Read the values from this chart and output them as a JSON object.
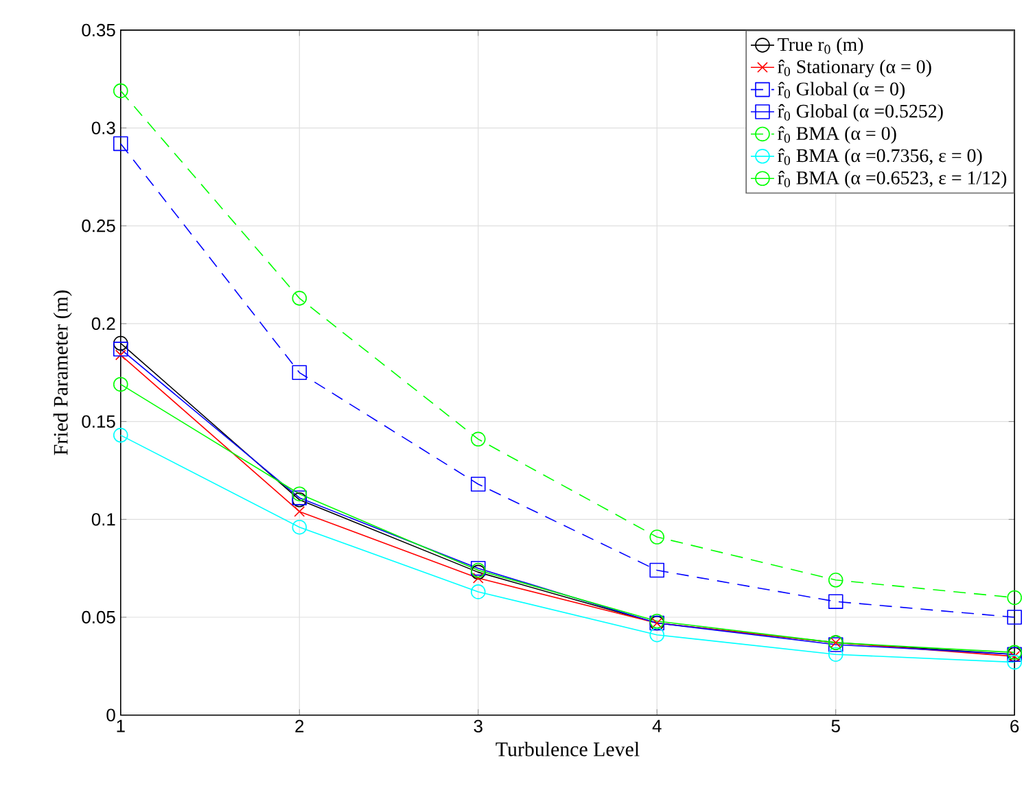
{
  "chart_data": {
    "type": "line",
    "xlabel": "Turbulence Level",
    "ylabel": "Fried Parameter (m)",
    "x": [
      1,
      2,
      3,
      4,
      5,
      6
    ],
    "series": [
      {
        "name": "True r$_{0}$ (m)",
        "color": "#000000",
        "marker": "circle",
        "line_style": "solid",
        "values": [
          0.19,
          0.11,
          0.073,
          0.047,
          0.037,
          0.031
        ]
      },
      {
        "name": "r̂$_{0}$ Stationary (α = 0)",
        "color": "#ff0000",
        "marker": "cross",
        "line_style": "solid",
        "values": [
          0.184,
          0.104,
          0.07,
          0.047,
          0.037,
          0.03
        ]
      },
      {
        "name": "r̂$_{0}$ Global (α = 0)",
        "color": "#0000ff",
        "marker": "square",
        "line_style": "dashed",
        "values": [
          0.292,
          0.175,
          0.118,
          0.074,
          0.058,
          0.05
        ]
      },
      {
        "name": "r̂$_{0}$ Global (α =0.5252)",
        "color": "#0000ff",
        "marker": "square",
        "line_style": "solid",
        "values": [
          0.187,
          0.111,
          0.075,
          0.047,
          0.036,
          0.031
        ]
      },
      {
        "name": "r̂$_{0}$ BMA (α = 0)",
        "color": "#00ff00",
        "marker": "circle",
        "line_style": "dashed",
        "values": [
          0.319,
          0.213,
          0.141,
          0.091,
          0.069,
          0.06
        ]
      },
      {
        "name": "r̂$_{0}$ BMA (α =0.7356, ε = 0)",
        "color": "#00ffff",
        "marker": "circle",
        "line_style": "solid",
        "values": [
          0.143,
          0.096,
          0.063,
          0.041,
          0.031,
          0.027
        ]
      },
      {
        "name": "r̂$_{0}$ BMA (α =0.6523, ε = 1/12)",
        "color": "#00ff00",
        "marker": "circle",
        "line_style": "solid",
        "values": [
          0.169,
          0.113,
          0.074,
          0.048,
          0.037,
          0.032
        ]
      }
    ],
    "xlim": [
      1,
      6
    ],
    "ylim": [
      0,
      0.35
    ],
    "xticks": [
      1,
      2,
      3,
      4,
      5,
      6
    ],
    "yticks": [
      0,
      0.05,
      0.1,
      0.15,
      0.2,
      0.25,
      0.3,
      0.35
    ],
    "grid": true,
    "legend": "top right"
  }
}
